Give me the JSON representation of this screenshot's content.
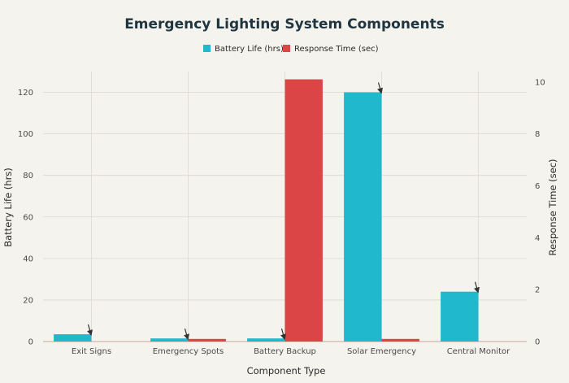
{
  "chart_data": {
    "type": "bar",
    "title": "Emergency Lighting System Components",
    "xlabel": "Component Type",
    "ylabel": "Battery Life (hrs)",
    "y2label": "Response Time (sec)",
    "categories": [
      "Exit Signs",
      "Emergency Spots",
      "Battery Backup",
      "Solar Emergency",
      "Central Monitor"
    ],
    "series": [
      {
        "name": "Battery Life (hrs)",
        "axis": "left",
        "color": "#1fb8cd",
        "values": [
          3.5,
          1.5,
          1.5,
          120,
          24
        ]
      },
      {
        "name": "Response Time (sec)",
        "axis": "right",
        "color": "#db4545",
        "values": [
          0.0,
          0.1,
          10.1,
          0.1,
          0.0
        ]
      }
    ],
    "ylim": [
      0,
      130
    ],
    "y2lim": [
      0,
      10.4
    ],
    "yticks": [
      0,
      20,
      40,
      60,
      80,
      100,
      120
    ],
    "y2ticks": [
      0,
      2,
      4,
      6,
      8,
      10
    ],
    "legend_position": "top-center",
    "grid": true,
    "annotations": "arrow markers above Battery Life bars"
  }
}
